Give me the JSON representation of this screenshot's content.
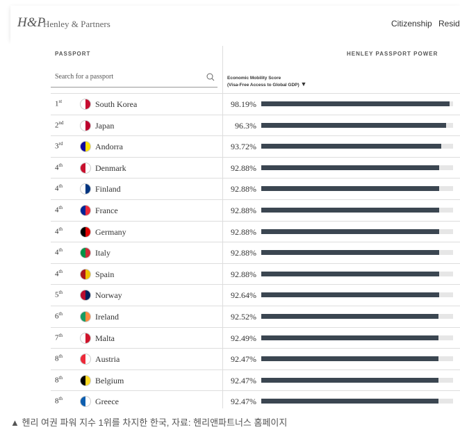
{
  "header": {
    "logo": "H&P",
    "brand": "Henley & Partners",
    "nav": [
      "Citizenship",
      "Reside"
    ]
  },
  "table": {
    "col_passport": "PASSPORT",
    "col_power": "HENLEY PASSPORT POWER",
    "search_placeholder": "Search for a passport",
    "score_title": "Economic Mobility Score",
    "score_subtitle": "(Visa-Free Access to Global GDP)",
    "score_range": [
      0,
      100
    ],
    "rows": [
      {
        "rank": "1",
        "suffix": "st",
        "country": "South Korea",
        "score": 98.19,
        "score_label": "98.19%"
      },
      {
        "rank": "2",
        "suffix": "nd",
        "country": "Japan",
        "score": 96.3,
        "score_label": "96.3%"
      },
      {
        "rank": "3",
        "suffix": "rd",
        "country": "Andorra",
        "score": 93.72,
        "score_label": "93.72%"
      },
      {
        "rank": "4",
        "suffix": "th",
        "country": "Denmark",
        "score": 92.88,
        "score_label": "92.88%"
      },
      {
        "rank": "4",
        "suffix": "th",
        "country": "Finland",
        "score": 92.88,
        "score_label": "92.88%"
      },
      {
        "rank": "4",
        "suffix": "th",
        "country": "France",
        "score": 92.88,
        "score_label": "92.88%"
      },
      {
        "rank": "4",
        "suffix": "th",
        "country": "Germany",
        "score": 92.88,
        "score_label": "92.88%"
      },
      {
        "rank": "4",
        "suffix": "th",
        "country": "Italy",
        "score": 92.88,
        "score_label": "92.88%"
      },
      {
        "rank": "4",
        "suffix": "th",
        "country": "Spain",
        "score": 92.88,
        "score_label": "92.88%"
      },
      {
        "rank": "5",
        "suffix": "th",
        "country": "Norway",
        "score": 92.64,
        "score_label": "92.64%"
      },
      {
        "rank": "6",
        "suffix": "th",
        "country": "Ireland",
        "score": 92.52,
        "score_label": "92.52%"
      },
      {
        "rank": "7",
        "suffix": "th",
        "country": "Malta",
        "score": 92.49,
        "score_label": "92.49%"
      },
      {
        "rank": "8",
        "suffix": "th",
        "country": "Austria",
        "score": 92.47,
        "score_label": "92.47%"
      },
      {
        "rank": "8",
        "suffix": "th",
        "country": "Belgium",
        "score": 92.47,
        "score_label": "92.47%"
      },
      {
        "rank": "8",
        "suffix": "th",
        "country": "Greece",
        "score": 92.47,
        "score_label": "92.47%"
      }
    ]
  },
  "caption": "▲ 헨리 여권 파워 지수 1위를 차지한 한국, 자료: 헨리앤파트너스 홈페이지"
}
